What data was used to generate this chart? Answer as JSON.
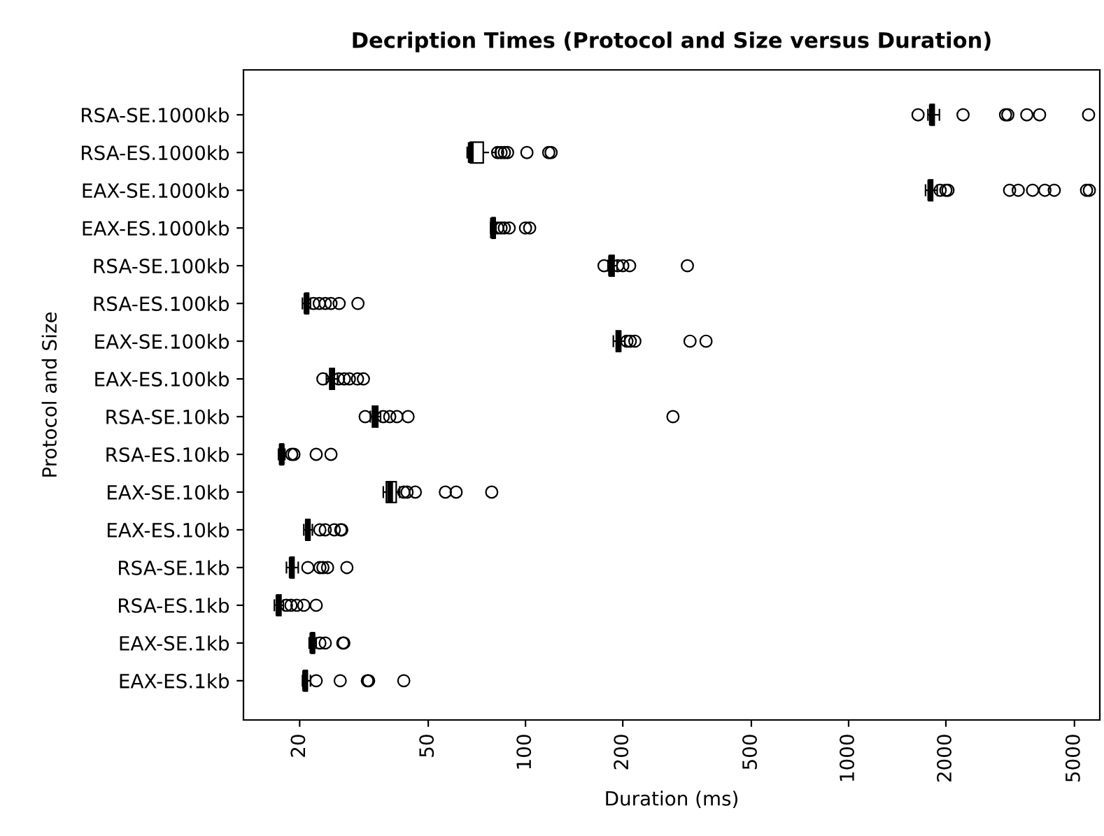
{
  "chart_data": {
    "type": "box",
    "orientation": "horizontal",
    "title": "Decription Times (Protocol and Size versus Duration)",
    "xlabel": "Duration (ms)",
    "ylabel": "Protocol and Size",
    "log": "x",
    "xlim": [
      13.4,
      5990
    ],
    "xticks": [
      20,
      50,
      100,
      200,
      500,
      1000,
      2000,
      5000
    ],
    "grid": false,
    "legend": false,
    "marker": "circle",
    "categories": [
      "RSA-SE.1000kb",
      "RSA-ES.1000kb",
      "EAX-SE.1000kb",
      "EAX-ES.1000kb",
      "RSA-SE.100kb",
      "RSA-ES.100kb",
      "EAX-SE.100kb",
      "EAX-ES.100kb",
      "RSA-SE.10kb",
      "RSA-ES.10kb",
      "EAX-SE.10kb",
      "EAX-ES.10kb",
      "RSA-SE.1kb",
      "RSA-ES.1kb",
      "EAX-SE.1kb",
      "EAX-ES.1kb"
    ],
    "boxes": [
      {
        "low": 1760,
        "q1": 1790,
        "median": 1810,
        "q3": 1840,
        "high": 1910,
        "outliers": [
          1640,
          2260,
          3060,
          3110,
          3560,
          3900,
          5530
        ]
      },
      {
        "low": 66,
        "q1": 67.5,
        "median": 67.7,
        "q3": 74,
        "high": 81,
        "outliers": [
          82,
          84,
          86,
          88,
          101,
          118,
          120
        ]
      },
      {
        "low": 1730,
        "q1": 1770,
        "median": 1790,
        "q3": 1820,
        "high": 1880,
        "outliers": [
          1920,
          2000,
          2030,
          3150,
          3350,
          3710,
          4050,
          4330,
          5450,
          5560
        ]
      },
      {
        "low": 78,
        "q1": 78.8,
        "median": 79.3,
        "q3": 80.5,
        "high": 81,
        "outliers": [
          82,
          84,
          86,
          89,
          100,
          103
        ]
      },
      {
        "low": 180,
        "q1": 182,
        "median": 184,
        "q3": 188,
        "high": 192,
        "outliers": [
          175,
          193,
          200,
          210,
          317
        ]
      },
      {
        "low": 20.4,
        "q1": 20.8,
        "median": 21,
        "q3": 21.3,
        "high": 21.6,
        "outliers": [
          22.1,
          23,
          24,
          25,
          26.5,
          30.3
        ]
      },
      {
        "low": 187,
        "q1": 191,
        "median": 194,
        "q3": 197,
        "high": 203,
        "outliers": [
          206,
          211,
          218,
          323,
          362
        ]
      },
      {
        "low": 24.2,
        "q1": 24.8,
        "median": 25.2,
        "q3": 25.6,
        "high": 26.2,
        "outliers": [
          23.6,
          26.4,
          27.5,
          28.5,
          30.2,
          31.5
        ]
      },
      {
        "low": 33.1,
        "q1": 33.6,
        "median": 34.3,
        "q3": 34.9,
        "high": 35.6,
        "outliers": [
          31.9,
          36.3,
          38,
          40,
          43.3,
          286
        ]
      },
      {
        "low": 17.2,
        "q1": 17.4,
        "median": 17.6,
        "q3": 17.8,
        "high": 18,
        "outliers": [
          18.9,
          19.2,
          22.5,
          25
        ]
      },
      {
        "low": 36.3,
        "q1": 37.1,
        "median": 38.1,
        "q3": 39.8,
        "high": 40.8,
        "outliers": [
          42,
          43,
          45.6,
          56.5,
          61,
          78.6
        ]
      },
      {
        "low": 20.6,
        "q1": 20.9,
        "median": 21.2,
        "q3": 21.5,
        "high": 21.9,
        "outliers": [
          23.1,
          24,
          25.6,
          26.8,
          27
        ]
      },
      {
        "low": 18.2,
        "q1": 18.7,
        "median": 18.9,
        "q3": 19.2,
        "high": 19.8,
        "outliers": [
          21.2,
          23.1,
          23.6,
          24.4,
          28
        ]
      },
      {
        "low": 16.7,
        "q1": 17,
        "median": 17.2,
        "q3": 17.5,
        "high": 17.8,
        "outliers": [
          18.2,
          18.8,
          19.6,
          20.6,
          22.5
        ]
      },
      {
        "low": 21.4,
        "q1": 21.7,
        "median": 21.9,
        "q3": 22.2,
        "high": 22.5,
        "outliers": [
          23.1,
          24,
          27.2,
          27.4
        ]
      },
      {
        "low": 20.4,
        "q1": 20.6,
        "median": 20.8,
        "q3": 21.1,
        "high": 21.6,
        "outliers": [
          22.5,
          26.7,
          32.4,
          32.7,
          42
        ]
      }
    ]
  }
}
